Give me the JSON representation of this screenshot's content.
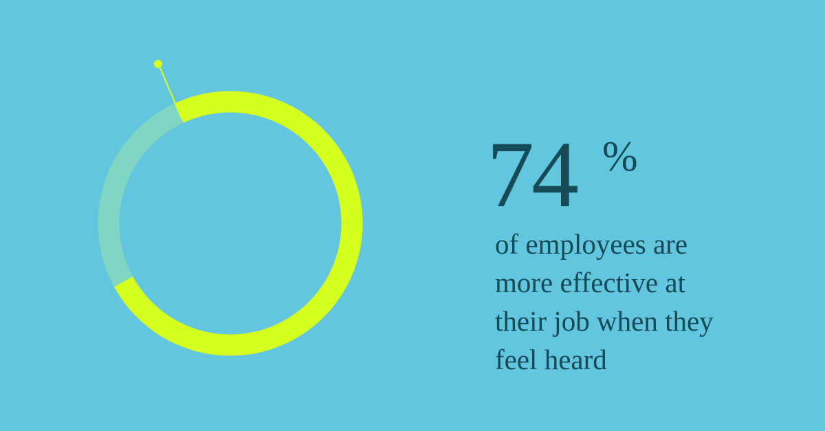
{
  "chart_data": {
    "type": "donut",
    "values": [
      74,
      26
    ],
    "colors": [
      "#d4ff1f",
      "#7fd6c2"
    ],
    "unit": "%",
    "caption_lines": [
      "of employees are",
      "more effective at",
      "their job when they",
      "feel heard"
    ]
  }
}
